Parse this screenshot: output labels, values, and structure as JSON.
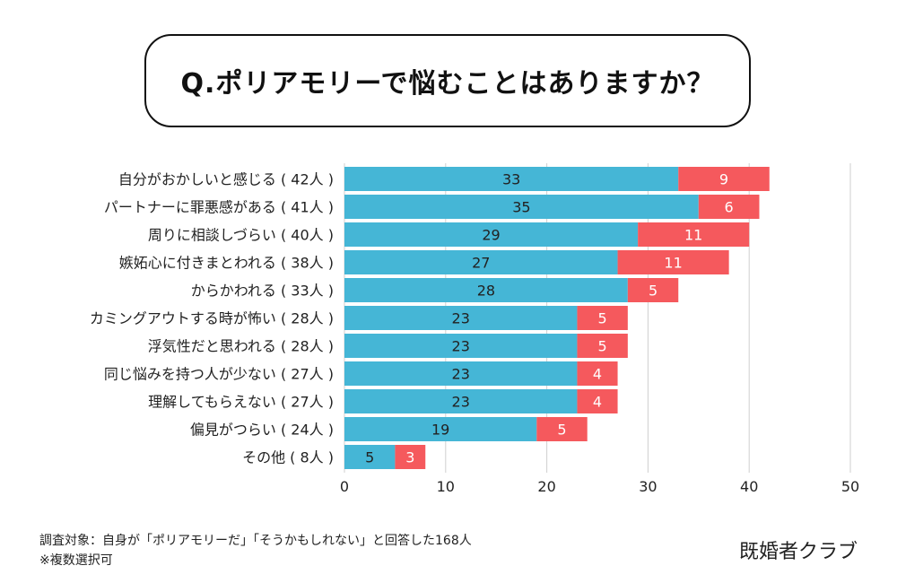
{
  "title": "Q.ポリアモリーで悩むことはありますか？",
  "chart_data": {
    "type": "bar",
    "orientation": "horizontal",
    "stacked": true,
    "categories": [
      "自分がおかしいと感じる ( 42人 )",
      "パートナーに罪悪感がある ( 41人 )",
      "周りに相談しづらい ( 40人 )",
      "嫉妬心に付きまとわれる ( 38人 )",
      "からかわれる ( 33人 )",
      "カミングアウトする時が怖い ( 28人 )",
      "浮気性だと思われる ( 28人 )",
      "同じ悩みを持つ人が少ない ( 27人 )",
      "理解してもらえない ( 27人 )",
      "偏見がつらい ( 24人 )",
      "その他 ( 8人 )"
    ],
    "series": [
      {
        "color": "#45b6d6",
        "values": [
          33,
          35,
          29,
          27,
          28,
          23,
          23,
          23,
          23,
          19,
          5
        ]
      },
      {
        "color": "#f5595d",
        "values": [
          9,
          6,
          11,
          11,
          5,
          5,
          5,
          4,
          4,
          5,
          3
        ]
      }
    ],
    "xlim": [
      0,
      50
    ],
    "xticks": [
      "0",
      "10",
      "20",
      "30",
      "40",
      "50"
    ],
    "grid": true
  },
  "footnote": {
    "line1": "調査対象：自身が「ポリアモリーだ」「そうかもしれない」と回答した168人",
    "line2": "※複数選択可"
  },
  "brand": "既婚者クラブ"
}
